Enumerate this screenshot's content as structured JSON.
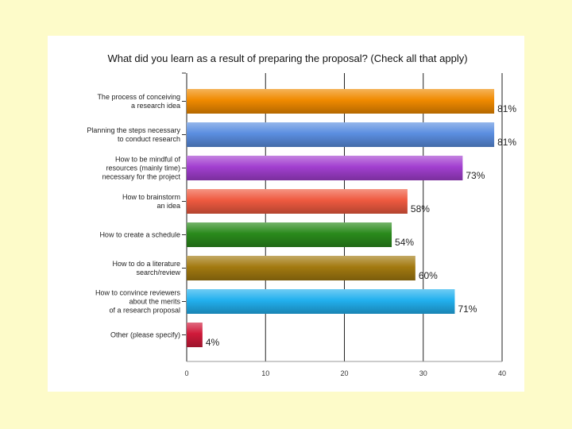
{
  "chart_data": {
    "type": "bar",
    "orientation": "horizontal",
    "title": "What did you learn as a result of preparing the proposal? (Check all that apply)",
    "categories": [
      [
        "The process of conceiving",
        "a research idea"
      ],
      [
        "Planning the steps necessary",
        "to conduct research"
      ],
      [
        "How to be mindful of",
        "resources (mainly time)",
        "necessary for the project"
      ],
      [
        "How to brainstorm",
        "an idea"
      ],
      [
        "How to create a schedule"
      ],
      [
        "How to do a literature",
        "search/review"
      ],
      [
        "How to convince reviewers",
        "about the merits",
        "of a research proposal"
      ],
      [
        "Other (please specify)"
      ]
    ],
    "values": [
      39,
      39,
      35,
      28,
      26,
      29,
      34,
      2
    ],
    "data_labels": [
      "81%",
      "81%",
      "73%",
      "58%",
      "54%",
      "60%",
      "71%",
      "4%"
    ],
    "colors": [
      "#f08a00",
      "#5b8ee0",
      "#a23fd0",
      "#ef5a40",
      "#2a8a1c",
      "#a37a10",
      "#22b0ee",
      "#d01a3a"
    ],
    "xlim": [
      0,
      40
    ],
    "xticks": [
      "0",
      "10",
      "20",
      "30",
      "40"
    ],
    "grid": true
  }
}
